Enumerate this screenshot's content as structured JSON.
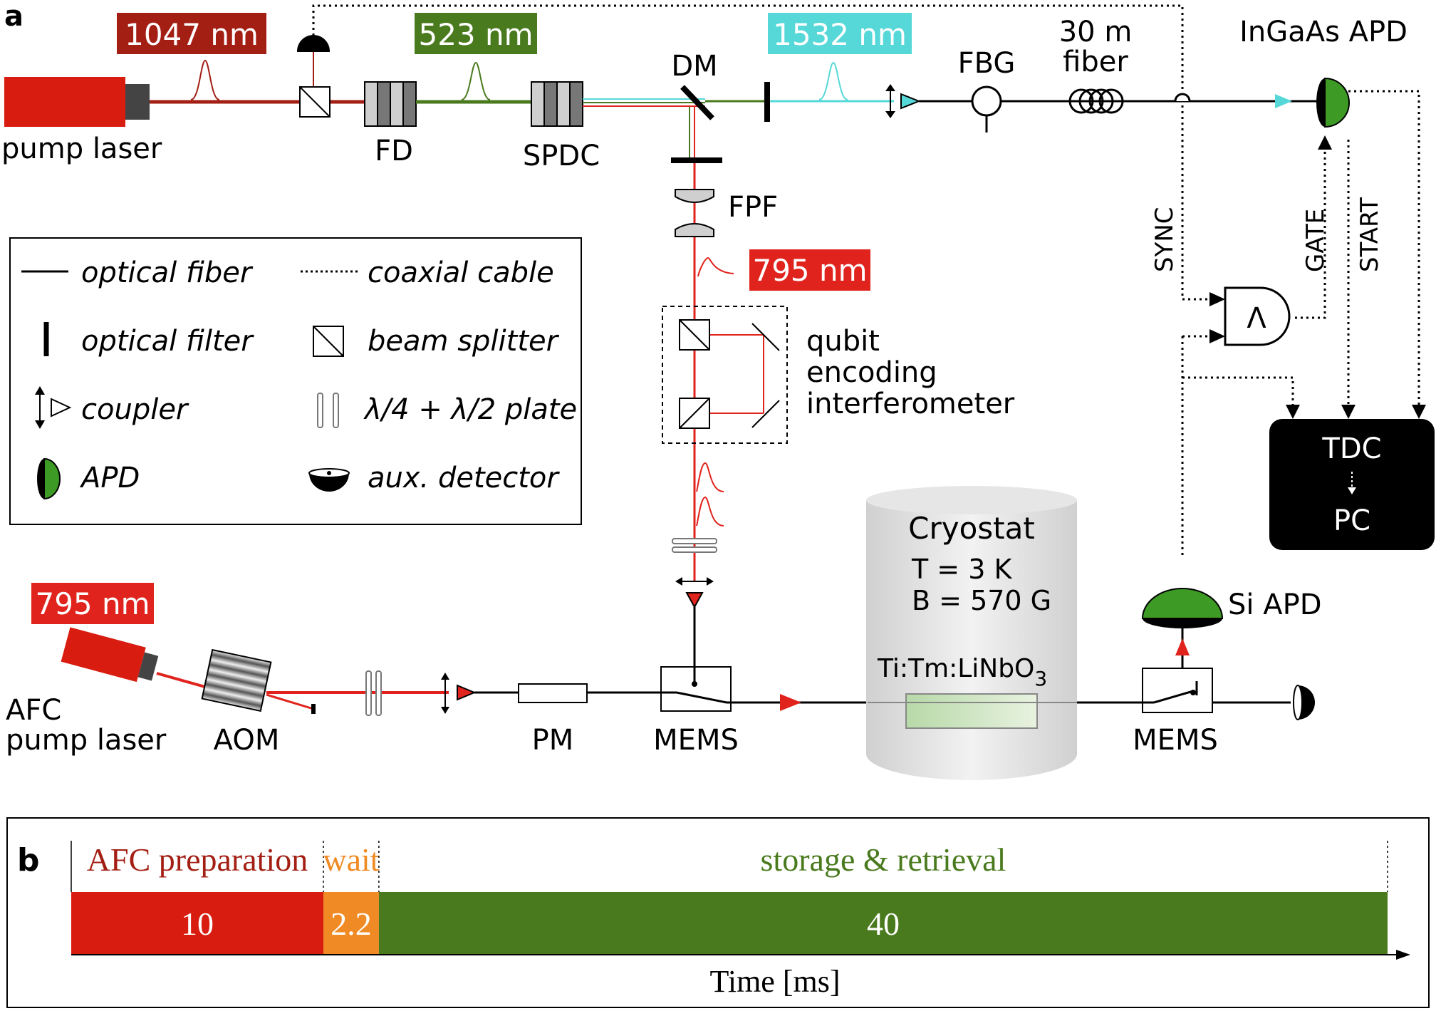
{
  "panel_a": {
    "label": "a",
    "wavelength_pump": "1047 nm",
    "wavelength_green": "523 nm",
    "wavelength_telecom": "1532 nm",
    "wavelength_795_top": "795 nm",
    "wavelength_795_bottom": "795 nm",
    "pump_laser": "pump laser",
    "fd": "FD",
    "spdc": "SPDC",
    "dm": "DM",
    "fpf": "FPF",
    "fbg": "FBG",
    "fiber_line1": "30 m",
    "fiber_line2": "fiber",
    "ingaas_apd": "InGaAs APD",
    "sync": "SYNC",
    "gate": "GATE",
    "start": "START",
    "and_gate_symbol": "Λ",
    "tdc": "TDC",
    "pc": "PC",
    "qubit_line1": "qubit",
    "qubit_line2": "encoding",
    "qubit_line3": "interferometer",
    "cryostat": "Cryostat",
    "temperature": "T = 3 K",
    "field": "B = 570 G",
    "crystal_main": "Ti:Tm:LiNbO",
    "crystal_sub": "3",
    "si_apd": "Si APD",
    "afc_line1": "AFC",
    "afc_line2": "pump laser",
    "aom": "AOM",
    "pm": "PM",
    "mems_left": "MEMS",
    "mems_right": "MEMS"
  },
  "legend": {
    "optical_fiber": "optical fiber",
    "coaxial_cable": "coaxial cable",
    "optical_filter": "optical filter",
    "beam_splitter": "beam splitter",
    "coupler": "coupler",
    "plates": "λ/4 + λ/2 plate",
    "apd": "APD",
    "aux_detector": "aux. detector"
  },
  "panel_b": {
    "label": "b",
    "xlabel": "Time [ms]"
  },
  "colors": {
    "red_dark": "#a31f14",
    "red": "#e0231c",
    "green": "#4a7a1e",
    "cyan": "#57d8d8",
    "orange": "#f08a24",
    "apd_green": "#3d9a24"
  },
  "chart_data": {
    "type": "bar",
    "orientation": "horizontal-stacked",
    "categories": [
      "AFC preparation",
      "wait",
      "storage & retrieval"
    ],
    "values": [
      10,
      2.2,
      40
    ],
    "colors": [
      "#d91c10",
      "#f08a24",
      "#4a7a1e"
    ],
    "xlabel": "Time [ms]",
    "ylabel": ""
  }
}
